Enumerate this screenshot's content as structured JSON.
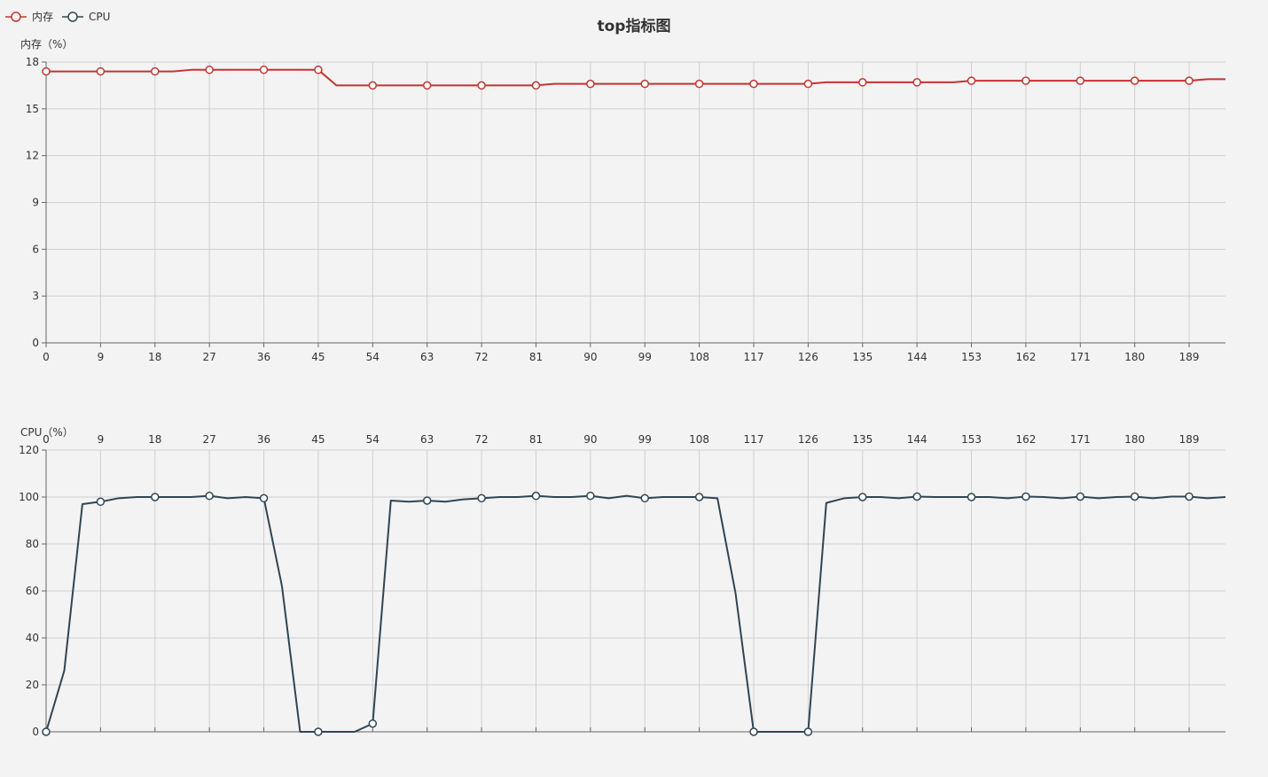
{
  "title": "top指标图",
  "legend": [
    {
      "name": "内存",
      "color": "#c23531"
    },
    {
      "name": "CPU",
      "color": "#2f4554"
    }
  ],
  "chart_data": [
    {
      "type": "line",
      "title": "top指标图",
      "series": [
        {
          "name": "内存",
          "color": "#c23531",
          "x": [
            0,
            3,
            6,
            9,
            12,
            15,
            18,
            21,
            24,
            27,
            30,
            33,
            36,
            39,
            42,
            45,
            48,
            51,
            54,
            57,
            60,
            63,
            66,
            69,
            72,
            75,
            78,
            81,
            84,
            87,
            90,
            93,
            96,
            99,
            102,
            105,
            108,
            111,
            114,
            117,
            120,
            123,
            126,
            129,
            132,
            135,
            138,
            141,
            144,
            147,
            150,
            153,
            156,
            159,
            162,
            165,
            168,
            171,
            174,
            177,
            180,
            183,
            186,
            189,
            192,
            195
          ],
          "values": [
            17.4,
            17.4,
            17.4,
            17.4,
            17.4,
            17.4,
            17.4,
            17.4,
            17.5,
            17.5,
            17.5,
            17.5,
            17.5,
            17.5,
            17.5,
            17.5,
            16.5,
            16.5,
            16.5,
            16.5,
            16.5,
            16.5,
            16.5,
            16.5,
            16.5,
            16.5,
            16.5,
            16.5,
            16.6,
            16.6,
            16.6,
            16.6,
            16.6,
            16.6,
            16.6,
            16.6,
            16.6,
            16.6,
            16.6,
            16.6,
            16.6,
            16.6,
            16.6,
            16.7,
            16.7,
            16.7,
            16.7,
            16.7,
            16.7,
            16.7,
            16.7,
            16.8,
            16.8,
            16.8,
            16.8,
            16.8,
            16.8,
            16.8,
            16.8,
            16.8,
            16.8,
            16.8,
            16.8,
            16.8,
            16.9,
            16.9
          ]
        }
      ],
      "ylabel": "内存（%）",
      "ylim": [
        0,
        18
      ],
      "yticks": [
        0,
        3,
        6,
        9,
        12,
        15,
        18
      ],
      "xlim": [
        0,
        195
      ],
      "xticks": [
        0,
        9,
        18,
        27,
        36,
        45,
        54,
        63,
        72,
        81,
        90,
        99,
        108,
        117,
        126,
        135,
        144,
        153,
        162,
        171,
        180,
        189
      ],
      "x_axis_position": "bottom",
      "grid": true
    },
    {
      "type": "line",
      "series": [
        {
          "name": "CPU",
          "color": "#2f4554",
          "x": [
            0,
            3,
            6,
            9,
            12,
            15,
            18,
            21,
            24,
            27,
            30,
            33,
            36,
            39,
            42,
            45,
            48,
            51,
            54,
            57,
            60,
            63,
            66,
            69,
            72,
            75,
            78,
            81,
            84,
            87,
            90,
            93,
            96,
            99,
            102,
            105,
            108,
            111,
            114,
            117,
            120,
            123,
            126,
            129,
            132,
            135,
            138,
            141,
            144,
            147,
            150,
            153,
            156,
            159,
            162,
            165,
            168,
            171,
            174,
            177,
            180,
            183,
            186,
            189,
            192,
            195
          ],
          "values": [
            0,
            26,
            97,
            98,
            99.5,
            100,
            100,
            100,
            100,
            100.5,
            99.5,
            100,
            99.5,
            62,
            0,
            0,
            0,
            0,
            3.5,
            98.5,
            98,
            98.5,
            98,
            99,
            99.5,
            100,
            100,
            100.5,
            100,
            100,
            100.5,
            99.5,
            100.5,
            99.5,
            100,
            100,
            100,
            99.5,
            59,
            0,
            0,
            0,
            0,
            97.5,
            99.5,
            100,
            100,
            99.5,
            100.2,
            100,
            100,
            100,
            100,
            99.5,
            100.2,
            100,
            99.5,
            100.2,
            99.5,
            100,
            100.2,
            99.5,
            100.2,
            100.2,
            99.5,
            100
          ]
        }
      ],
      "ylabel": "CPU（%）",
      "ylim": [
        0,
        120
      ],
      "yticks": [
        0,
        20,
        40,
        60,
        80,
        100,
        120
      ],
      "xlim": [
        0,
        195
      ],
      "xticks": [
        0,
        9,
        18,
        27,
        36,
        45,
        54,
        63,
        72,
        81,
        90,
        99,
        108,
        117,
        126,
        135,
        144,
        153,
        162,
        171,
        180,
        189
      ],
      "x_axis_position": "top",
      "grid": true
    }
  ]
}
